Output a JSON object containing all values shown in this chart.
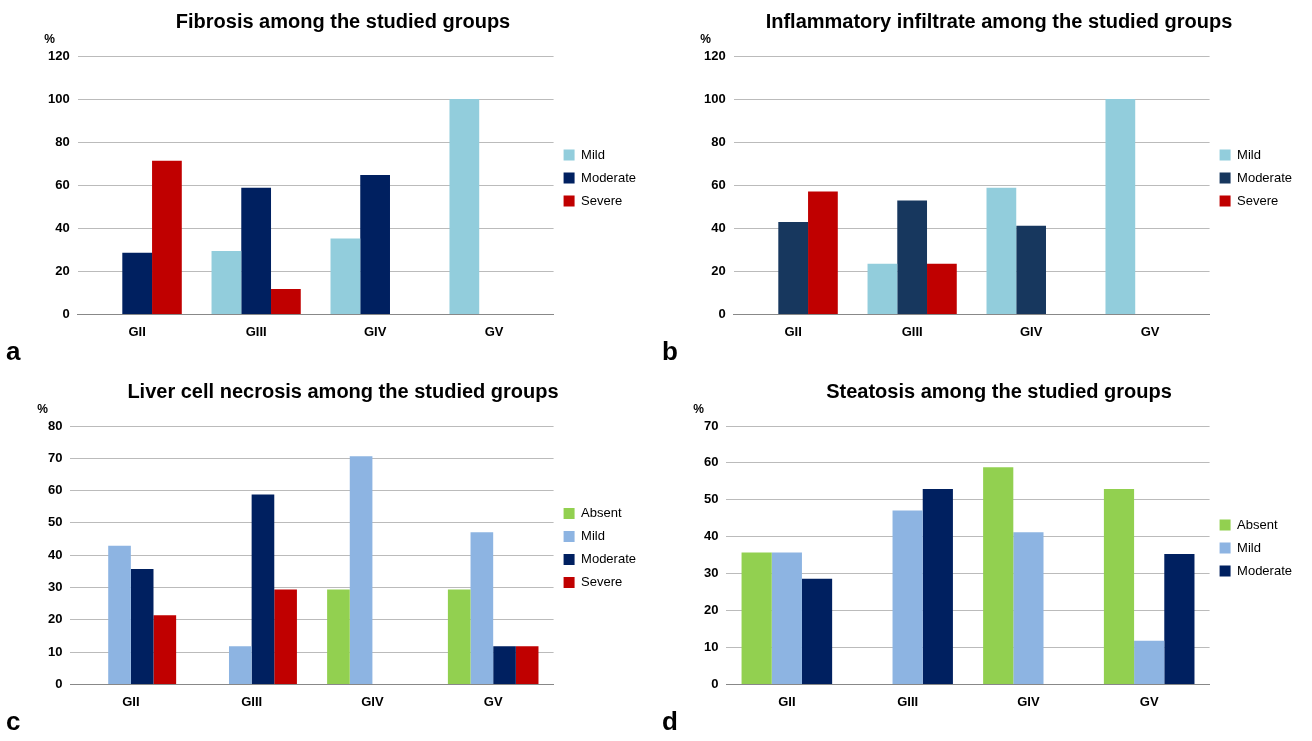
{
  "chart_data": [
    {
      "type": "bar",
      "title": "Fibrosis among the studied groups",
      "ylabel": "%",
      "categories": [
        "GII",
        "GIII",
        "GIV",
        "GV"
      ],
      "series": [
        {
          "name": "Mild",
          "color": "#92cddc",
          "values": [
            0,
            29.4,
            35.3,
            100
          ]
        },
        {
          "name": "Moderate",
          "color": "#002060",
          "values": [
            28.6,
            58.8,
            64.7,
            0
          ]
        },
        {
          "name": "Severe",
          "color": "#c00000",
          "values": [
            71.4,
            11.8,
            0,
            0
          ]
        }
      ],
      "ylim": [
        0,
        120
      ],
      "yticks": [
        0,
        20,
        40,
        60,
        80,
        100,
        120
      ],
      "grid": "y",
      "legend": "right",
      "annotations": [
        "a"
      ]
    },
    {
      "type": "bar",
      "title": "Inflammatory infiltrate among the studied groups",
      "ylabel": "%",
      "categories": [
        "GII",
        "GIII",
        "GIV",
        "GV"
      ],
      "series": [
        {
          "name": "Mild",
          "color": "#92cddc",
          "values": [
            0,
            23.5,
            58.8,
            100
          ]
        },
        {
          "name": "Moderate",
          "color": "#17375e",
          "values": [
            42.9,
            52.9,
            41.2,
            0
          ]
        },
        {
          "name": "Severe",
          "color": "#c00000",
          "values": [
            57.1,
            23.5,
            0,
            0
          ]
        }
      ],
      "ylim": [
        0,
        120
      ],
      "yticks": [
        0,
        20,
        40,
        60,
        80,
        100,
        120
      ],
      "grid": "y",
      "legend": "right",
      "annotations": [
        "b"
      ]
    },
    {
      "type": "bar",
      "title": "Liver cell necrosis among the studied groups",
      "ylabel": "%",
      "categories": [
        "GII",
        "GIII",
        "GIV",
        "GV"
      ],
      "series": [
        {
          "name": "Absent",
          "color": "#92d050",
          "values": [
            0,
            0,
            29.4,
            29.4
          ]
        },
        {
          "name": "Mild",
          "color": "#8db4e2",
          "values": [
            42.9,
            11.8,
            70.6,
            47.1
          ]
        },
        {
          "name": "Moderate",
          "color": "#002060",
          "values": [
            35.7,
            58.8,
            0,
            11.8
          ]
        },
        {
          "name": "Severe",
          "color": "#c00000",
          "values": [
            21.4,
            29.4,
            0,
            11.8
          ]
        }
      ],
      "ylim": [
        0,
        80
      ],
      "yticks": [
        0,
        10,
        20,
        30,
        40,
        50,
        60,
        70,
        80
      ],
      "grid": "y",
      "legend": "right",
      "annotations": [
        "c"
      ]
    },
    {
      "type": "bar",
      "title": "Steatosis among the studied groups",
      "ylabel": "%",
      "categories": [
        "GII",
        "GIII",
        "GIV",
        "GV"
      ],
      "series": [
        {
          "name": "Absent",
          "color": "#92d050",
          "values": [
            35.7,
            0,
            58.8,
            52.9
          ]
        },
        {
          "name": "Mild",
          "color": "#8db4e2",
          "values": [
            35.7,
            47.1,
            41.2,
            11.8
          ]
        },
        {
          "name": "Moderate",
          "color": "#002060",
          "values": [
            28.6,
            52.9,
            0,
            35.3
          ]
        }
      ],
      "ylim": [
        0,
        70
      ],
      "yticks": [
        0,
        10,
        20,
        30,
        40,
        50,
        60,
        70
      ],
      "grid": "y",
      "legend": "right",
      "annotations": [
        "d"
      ]
    }
  ]
}
